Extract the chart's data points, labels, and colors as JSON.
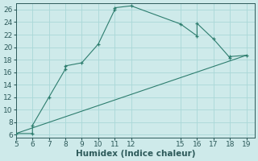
{
  "xlabel": "Humidex (Indice chaleur)",
  "bg_color": "#ceeaea",
  "line_color": "#2d7d6e",
  "curve_x": [
    5,
    6,
    6,
    7,
    8,
    8,
    9,
    10,
    11,
    11,
    12,
    15,
    16,
    16,
    17,
    18,
    18,
    19
  ],
  "curve_y": [
    6.2,
    6.2,
    7.5,
    12,
    16.5,
    17,
    17.5,
    20.5,
    26,
    26.3,
    26.6,
    23.7,
    21.8,
    23.8,
    21.3,
    18.3,
    18.5,
    18.7
  ],
  "line_x": [
    5,
    19
  ],
  "line_y": [
    6.2,
    18.7
  ],
  "xlim": [
    5,
    19.5
  ],
  "ylim": [
    5.5,
    27
  ],
  "xticks": [
    5,
    6,
    7,
    8,
    9,
    10,
    11,
    12,
    15,
    16,
    17,
    18,
    19
  ],
  "yticks": [
    6,
    8,
    10,
    12,
    14,
    16,
    18,
    20,
    22,
    24,
    26
  ],
  "grid_color": "#aad8d8",
  "tick_color": "#2d5a5a",
  "fontsize": 7.5,
  "tick_fontsize": 6.5
}
